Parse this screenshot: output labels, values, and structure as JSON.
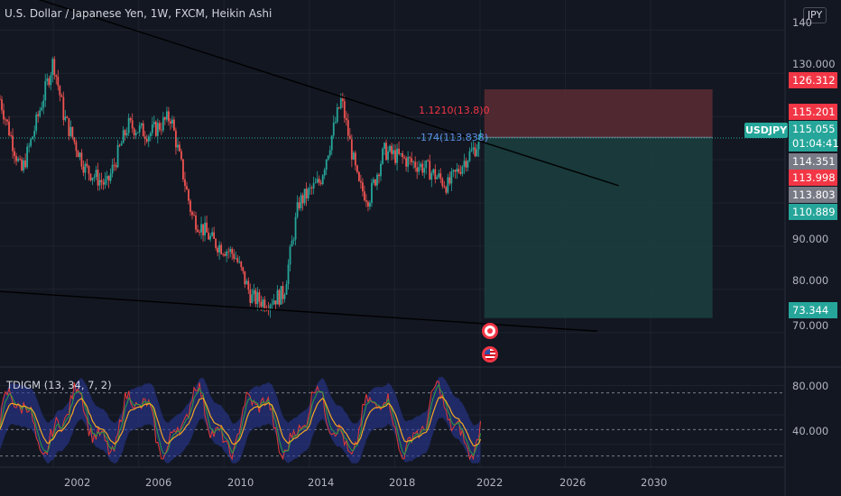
{
  "header": {
    "title": "U.S. Dollar / Japanese Yen, 1W, FXCM, Heikin Ashi",
    "currency": "JPY"
  },
  "symbol": {
    "name": "USDJPY",
    "price": "115.055",
    "countdown": "01:04:41"
  },
  "indicator": {
    "title": "TDIGM (13, 34, 7, 2)",
    "ticks": [
      "80.000",
      "40.000"
    ]
  },
  "axis": {
    "y_ticks": [
      "140",
      "130.000",
      "90.000",
      "80.000",
      "70.000"
    ],
    "x_ticks": [
      "2002",
      "2006",
      "2010",
      "2014",
      "2018",
      "2022",
      "2026",
      "2030"
    ]
  },
  "price_badges": [
    {
      "value": "126.312",
      "color": "#f23645"
    },
    {
      "value": "115.201",
      "color": "#f23645"
    },
    {
      "value": "114.351",
      "color": "#787b86"
    },
    {
      "value": "113.998",
      "color": "#f23645"
    },
    {
      "value": "113.803",
      "color": "#787b86"
    },
    {
      "value": "110.889",
      "color": "#26a69a"
    },
    {
      "value": "73.344",
      "color": "#26a69a"
    }
  ],
  "annotations": {
    "order_label": "-174(113.838)",
    "overlap_label": "1.1210(13.8)0"
  },
  "events": {
    "jp_flag_icon": "japan-flag-icon",
    "us_flag_icon": "us-flag-icon"
  },
  "colors": {
    "background": "#131722",
    "up": "#26a69a",
    "down": "#ef5350",
    "risk_zone": "#5b2b33",
    "reward_zone": "#1b3d3e",
    "trendline": "#000000"
  },
  "chart_data": {
    "type": "line",
    "title": "U.S. Dollar / Japanese Yen, 1W, FXCM, Heikin Ashi",
    "xlabel": "",
    "ylabel": "",
    "x": [
      1999.5,
      2000.5,
      2001,
      2002,
      2002.5,
      2003.5,
      2004.5,
      2005.5,
      2006.5,
      2007.5,
      2008.5,
      2009.5,
      2010.5,
      2011.3,
      2012,
      2012.8,
      2013.5,
      2014.5,
      2015.5,
      2016.3,
      2016.8,
      2017.5,
      2018.5,
      2019.5,
      2020.5,
      2021.3,
      2021.8,
      2022.1
    ],
    "series": [
      {
        "values": [
          124,
          107,
          115,
          133,
          120,
          108,
          104,
          118,
          116,
          120,
          97,
          91,
          88,
          78,
          77,
          79,
          100,
          105,
          124,
          104,
          101,
          112,
          110,
          108,
          104,
          110,
          113,
          115.1
        ]
      }
    ],
    "ylim": [
      62,
      147
    ],
    "xlim": [
      1999.5,
      2036.3
    ],
    "position_tool": {
      "entry": 115.201,
      "stop": 126.312,
      "target": 73.344,
      "start_x": 2022.2,
      "end_x": 2032.9
    },
    "trendlines": [
      {
        "from": [
          1999.5,
          150
        ],
        "to": [
          2028.5,
          104
        ]
      },
      {
        "from": [
          1999.5,
          79.5
        ],
        "to": [
          2027.5,
          70.3
        ]
      }
    ],
    "oscillator": {
      "ylim": [
        25,
        92
      ],
      "levels": [
        75,
        50,
        32
      ]
    }
  }
}
